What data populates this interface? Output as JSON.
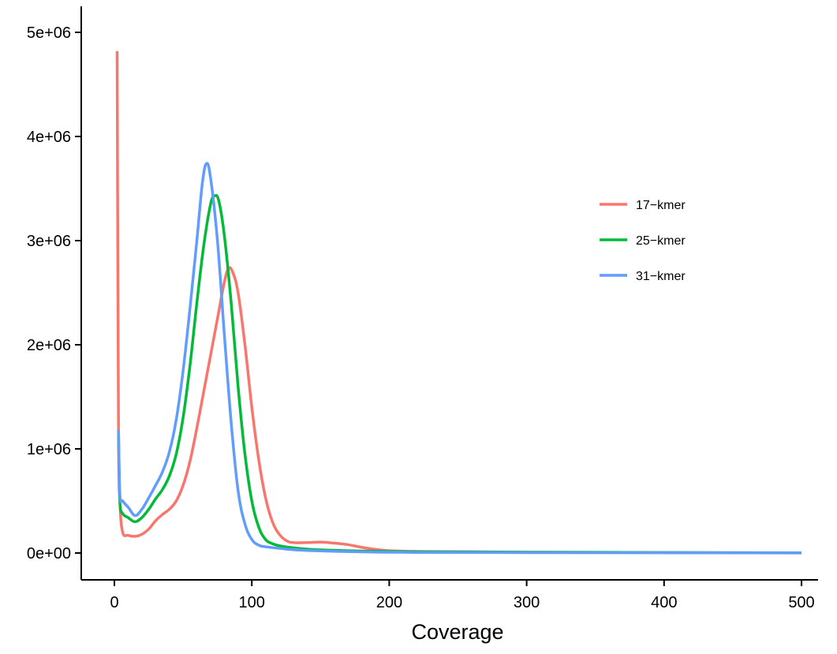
{
  "chart_data": {
    "type": "line",
    "title": "",
    "xlabel": "Coverage",
    "ylabel": "",
    "xlim": [
      0,
      500
    ],
    "ylim": [
      0,
      5000000
    ],
    "x_ticks": [
      0,
      100,
      200,
      300,
      400,
      500
    ],
    "x_tick_labels": [
      "0",
      "100",
      "200",
      "300",
      "400",
      "500"
    ],
    "y_ticks": [
      0,
      1000000,
      2000000,
      3000000,
      4000000,
      5000000
    ],
    "y_tick_labels": [
      "0e+00",
      "1e+06",
      "2e+06",
      "3e+06",
      "4e+06",
      "5e+06"
    ],
    "grid": false,
    "legend_position": "right",
    "series": [
      {
        "name": "17-kmer",
        "label": "17−kmer",
        "color": "#F8766D",
        "points": [
          [
            2,
            4820000
          ],
          [
            3,
            1200000
          ],
          [
            4,
            500000
          ],
          [
            6,
            200000
          ],
          [
            10,
            170000
          ],
          [
            15,
            160000
          ],
          [
            20,
            180000
          ],
          [
            25,
            230000
          ],
          [
            30,
            310000
          ],
          [
            35,
            370000
          ],
          [
            40,
            420000
          ],
          [
            45,
            500000
          ],
          [
            50,
            650000
          ],
          [
            55,
            880000
          ],
          [
            60,
            1200000
          ],
          [
            65,
            1550000
          ],
          [
            70,
            1900000
          ],
          [
            75,
            2250000
          ],
          [
            80,
            2600000
          ],
          [
            83,
            2730000
          ],
          [
            86,
            2700000
          ],
          [
            90,
            2500000
          ],
          [
            95,
            2000000
          ],
          [
            100,
            1400000
          ],
          [
            105,
            900000
          ],
          [
            110,
            530000
          ],
          [
            115,
            300000
          ],
          [
            120,
            180000
          ],
          [
            125,
            120000
          ],
          [
            130,
            100000
          ],
          [
            140,
            100000
          ],
          [
            150,
            105000
          ],
          [
            160,
            95000
          ],
          [
            170,
            80000
          ],
          [
            180,
            55000
          ],
          [
            190,
            35000
          ],
          [
            200,
            22000
          ],
          [
            220,
            15000
          ],
          [
            250,
            12000
          ],
          [
            300,
            8000
          ],
          [
            400,
            4000
          ],
          [
            500,
            1000
          ]
        ]
      },
      {
        "name": "25-kmer",
        "label": "25−kmer",
        "color": "#00BA38",
        "points": [
          [
            3,
            1150000
          ],
          [
            4,
            500000
          ],
          [
            6,
            380000
          ],
          [
            10,
            340000
          ],
          [
            15,
            300000
          ],
          [
            20,
            340000
          ],
          [
            25,
            420000
          ],
          [
            30,
            520000
          ],
          [
            35,
            610000
          ],
          [
            40,
            740000
          ],
          [
            45,
            950000
          ],
          [
            50,
            1300000
          ],
          [
            55,
            1800000
          ],
          [
            60,
            2400000
          ],
          [
            65,
            2950000
          ],
          [
            70,
            3350000
          ],
          [
            73,
            3430000
          ],
          [
            76,
            3380000
          ],
          [
            80,
            3050000
          ],
          [
            85,
            2400000
          ],
          [
            90,
            1600000
          ],
          [
            95,
            950000
          ],
          [
            100,
            500000
          ],
          [
            105,
            250000
          ],
          [
            110,
            130000
          ],
          [
            115,
            90000
          ],
          [
            120,
            70000
          ],
          [
            130,
            50000
          ],
          [
            150,
            30000
          ],
          [
            200,
            15000
          ],
          [
            300,
            8000
          ],
          [
            500,
            2000
          ]
        ]
      },
      {
        "name": "31-kmer",
        "label": "31−kmer",
        "color": "#619CFF",
        "points": [
          [
            3,
            1180000
          ],
          [
            4,
            560000
          ],
          [
            6,
            500000
          ],
          [
            10,
            440000
          ],
          [
            15,
            360000
          ],
          [
            20,
            420000
          ],
          [
            25,
            530000
          ],
          [
            30,
            650000
          ],
          [
            35,
            780000
          ],
          [
            40,
            970000
          ],
          [
            45,
            1280000
          ],
          [
            50,
            1750000
          ],
          [
            55,
            2350000
          ],
          [
            60,
            3000000
          ],
          [
            64,
            3550000
          ],
          [
            67,
            3740000
          ],
          [
            70,
            3600000
          ],
          [
            75,
            3000000
          ],
          [
            80,
            2100000
          ],
          [
            85,
            1250000
          ],
          [
            90,
            600000
          ],
          [
            95,
            280000
          ],
          [
            100,
            130000
          ],
          [
            105,
            75000
          ],
          [
            110,
            60000
          ],
          [
            120,
            45000
          ],
          [
            140,
            25000
          ],
          [
            200,
            8000
          ],
          [
            300,
            4000
          ],
          [
            500,
            1000
          ]
        ]
      }
    ]
  }
}
